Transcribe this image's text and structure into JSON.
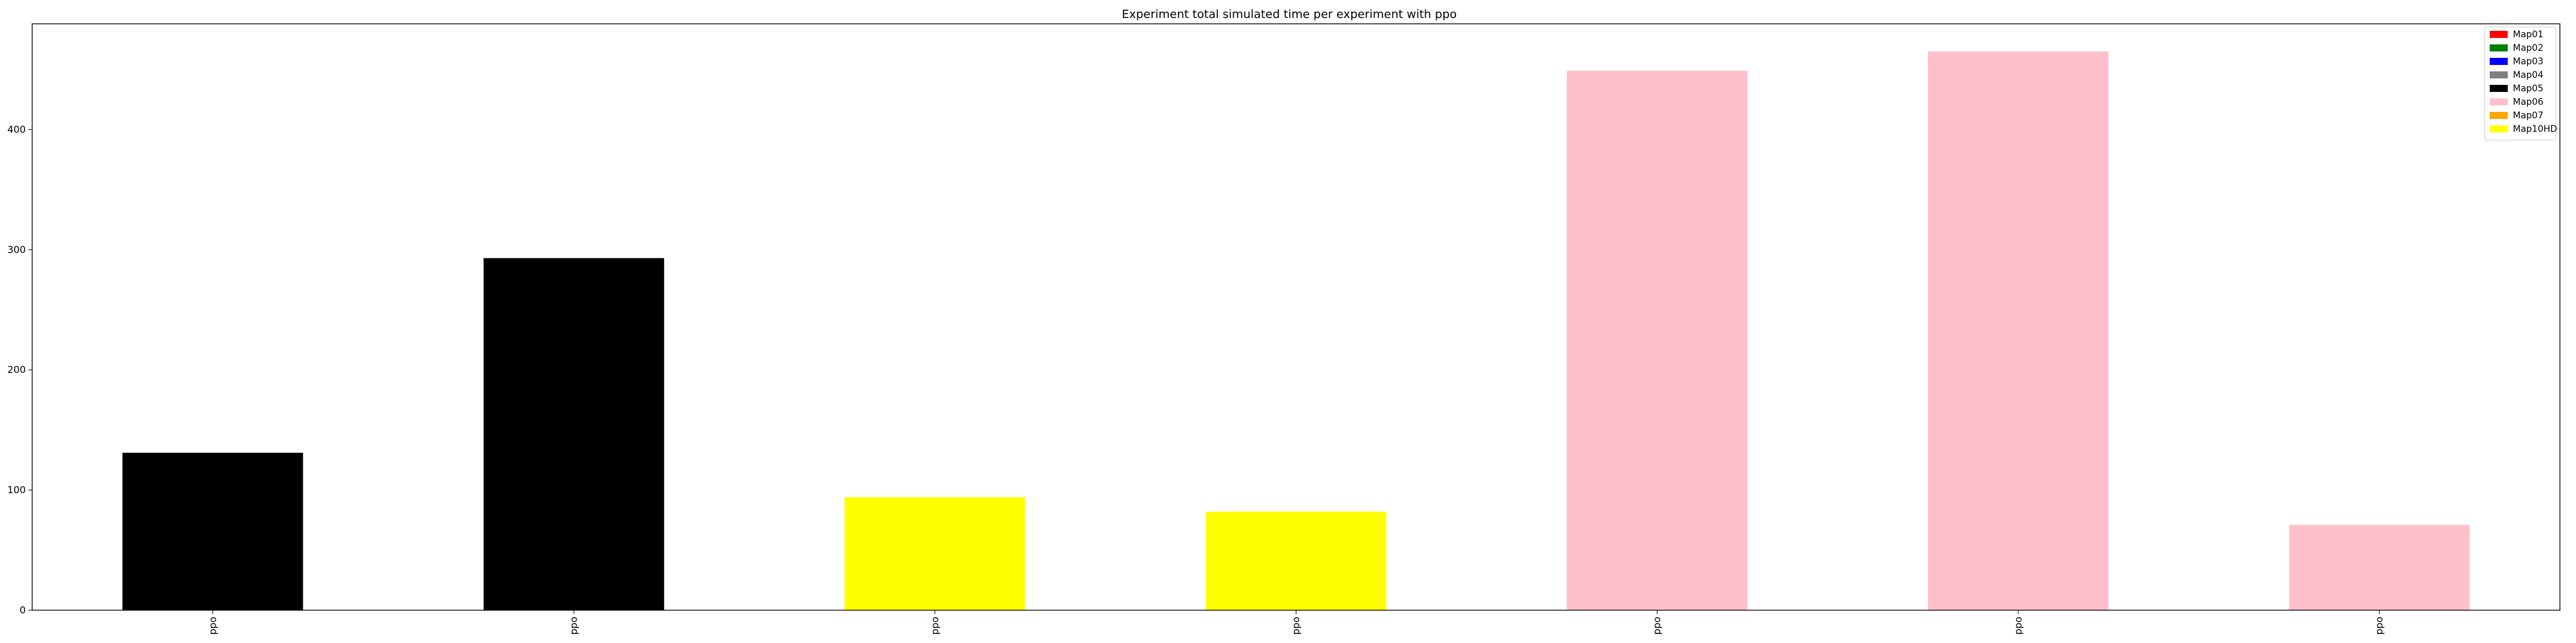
{
  "chart_data": {
    "type": "bar",
    "title": "Experiment total simulated time per experiment with ppo",
    "xlabel": "",
    "ylabel": "",
    "categories": [
      "ppo",
      "ppo",
      "ppo",
      "ppo",
      "ppo",
      "ppo",
      "ppo"
    ],
    "values": [
      131,
      293,
      94,
      82,
      449,
      465,
      71
    ],
    "bar_colors": [
      "#000000",
      "#000000",
      "#ffff00",
      "#ffff00",
      "#ffc0cb",
      "#ffc0cb",
      "#ffc0cb"
    ],
    "ylim": [
      0,
      488
    ],
    "yticks": [
      0,
      100,
      200,
      300,
      400
    ],
    "grid": false,
    "legend": {
      "position": "top-right",
      "entries": [
        {
          "label": "Map01",
          "color": "#ff0000"
        },
        {
          "label": "Map02",
          "color": "#008000"
        },
        {
          "label": "Map03",
          "color": "#0000ff"
        },
        {
          "label": "Map04",
          "color": "#808080"
        },
        {
          "label": "Map05",
          "color": "#000000"
        },
        {
          "label": "Map06",
          "color": "#ffc0cb"
        },
        {
          "label": "Map07",
          "color": "#ffa500"
        },
        {
          "label": "Map10HD",
          "color": "#ffff00"
        }
      ]
    }
  }
}
